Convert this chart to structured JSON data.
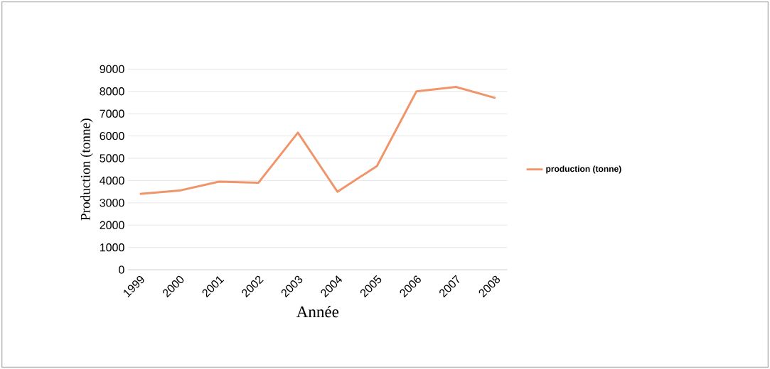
{
  "chart_data": {
    "type": "line",
    "xlabel": "Année",
    "ylabel": "Production (tonne)",
    "categories": [
      "1999",
      "2000",
      "2001",
      "2002",
      "2003",
      "2004",
      "2005",
      "2006",
      "2007",
      "2008"
    ],
    "series": [
      {
        "name": "production (tonne)",
        "color": "#f0956a",
        "values": [
          3400,
          3550,
          3950,
          3900,
          6150,
          3500,
          4650,
          8000,
          8200,
          7700
        ]
      }
    ],
    "ylim": [
      0,
      9000
    ],
    "yticks": [
      0,
      1000,
      2000,
      3000,
      4000,
      5000,
      6000,
      7000,
      8000,
      9000
    ],
    "grid": "y",
    "legend": "right",
    "marker": "none",
    "line_style": "solid"
  }
}
